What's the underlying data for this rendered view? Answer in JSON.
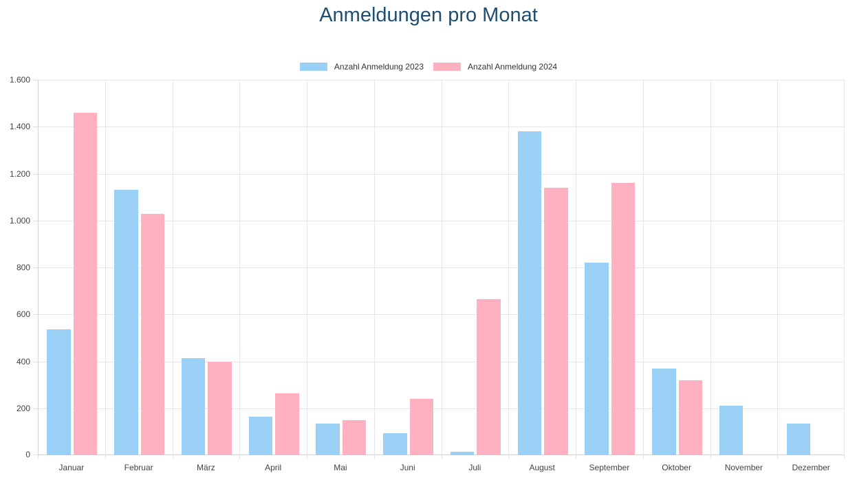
{
  "chart_data": {
    "type": "bar",
    "title": "Anmeldungen pro Monat",
    "categories": [
      "Januar",
      "Februar",
      "März",
      "April",
      "Mai",
      "Juni",
      "Juli",
      "August",
      "September",
      "Oktober",
      "November",
      "Dezember"
    ],
    "series": [
      {
        "name": "Anzahl Anmeldung 2023",
        "color": "#9ad0f5",
        "values": [
          535,
          1130,
          413,
          165,
          135,
          95,
          15,
          1380,
          820,
          370,
          210,
          135
        ]
      },
      {
        "name": "Anzahl Anmeldung 2024",
        "color": "#ffb1c1",
        "values": [
          1460,
          1030,
          400,
          265,
          150,
          240,
          665,
          1140,
          1160,
          320,
          0,
          0
        ]
      }
    ],
    "xlabel": "",
    "ylabel": "",
    "ylim": [
      0,
      1600
    ],
    "ytick_step": 200,
    "ytick_labels": [
      "0",
      "200",
      "400",
      "600",
      "800",
      "1.000",
      "1.200",
      "1.400",
      "1.600"
    ],
    "grid": true,
    "legend_position": "top"
  },
  "colors": {
    "title": "#1f4e73",
    "grid": "#e6e6e6",
    "axis": "#d4d4d4",
    "tick": "#dcdcdc",
    "tick_label": "#434343",
    "legend_text": "#333333",
    "background": "#ffffff"
  }
}
